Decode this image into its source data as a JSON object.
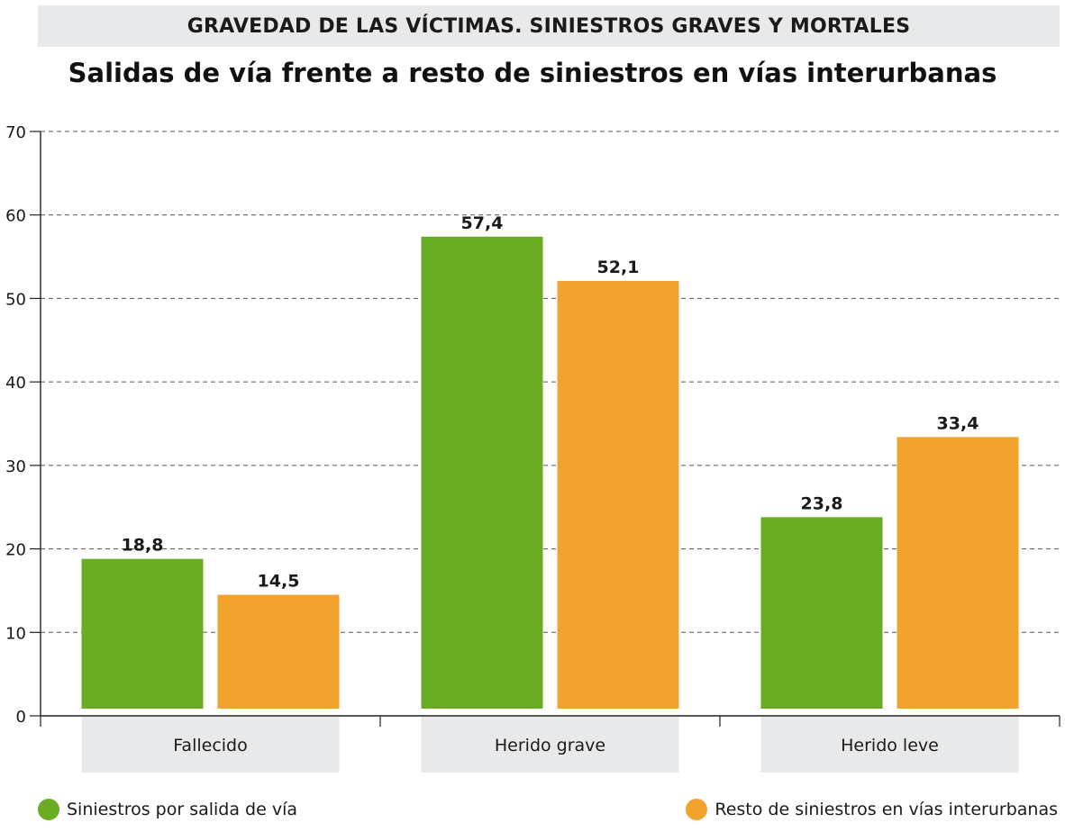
{
  "header": {
    "label": "GRAVEDAD DE LAS VÍCTIMAS. SINIESTROS GRAVES Y MORTALES"
  },
  "colors": {
    "series1": "#6aad25",
    "series2": "#f2a32d",
    "band": "#e8e9ea",
    "grid": "#555555"
  },
  "chart_data": {
    "type": "bar",
    "title": "Salidas de vía frente a resto de siniestros en vías interurbanas",
    "categories": [
      "Fallecido",
      "Herido grave",
      "Herido leve"
    ],
    "series": [
      {
        "name": "Siniestros por salida de vía",
        "values": [
          18.8,
          57.4,
          23.8
        ],
        "labels": [
          "18,8",
          "57,4",
          "23,8"
        ]
      },
      {
        "name": "Resto de siniestros en vías interurbanas",
        "values": [
          14.5,
          52.1,
          33.4
        ],
        "labels": [
          "14,5",
          "52,1",
          "33,4"
        ]
      }
    ],
    "ylim": [
      0,
      70
    ],
    "yticks": [
      0,
      10,
      20,
      30,
      40,
      50,
      60,
      70
    ],
    "grid": true,
    "legend": "bottom"
  }
}
